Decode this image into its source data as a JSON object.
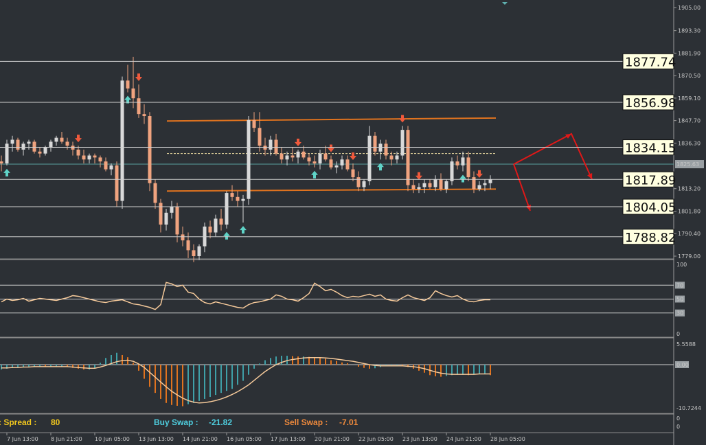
{
  "colors": {
    "background": "#2c3035",
    "grid": "#cfcfcf",
    "bull_candle": "#d9d9d9",
    "bear_candle": "#f0a37f",
    "channel": "#e0731f",
    "up_arrow": "#5fd3c7",
    "down_arrow": "#f05a3c",
    "projection": "#e01818",
    "rsi_line": "#f5c99a",
    "macd_pos": "#3fa0a8",
    "macd_neg": "#e0731f",
    "macd_signal": "#f5c99a",
    "spread_color": "#f2c81e",
    "buy_swap_color": "#4fcfe0",
    "sell_swap_color": "#f08a3c"
  },
  "price_axis": {
    "ticks": [
      "1905.00",
      "1893.30",
      "1881.90",
      "1870.50",
      "1859.10",
      "1847.70",
      "1836.30",
      "1825.63",
      "1813.20",
      "1801.80",
      "1790.40",
      "1779.00"
    ],
    "current_price": "1825.63"
  },
  "levels": [
    "1877.74",
    "1856.98",
    "1834.15",
    "1817.89",
    "1804.05",
    "1788.82"
  ],
  "rsi_axis": {
    "ticks": [
      "100",
      "70",
      "50",
      "30",
      "0"
    ]
  },
  "macd_axis": {
    "ticks": [
      "5.5588",
      "0.00",
      "-10.7244"
    ]
  },
  "info_axis": {
    "ticks": [
      "0",
      "0"
    ]
  },
  "time_axis": {
    "labels": [
      "7 Jun 13:00",
      "8 Jun 21:00",
      "10 Jun 05:00",
      "13 Jun 13:00",
      "14 Jun 21:00",
      "16 Jun 05:00",
      "17 Jun 13:00",
      "20 Jun 21:00",
      "22 Jun 05:00",
      "23 Jun 13:00",
      "24 Jun 21:00",
      "28 Jun 05:00"
    ]
  },
  "info_bar": {
    "spread_label": ": Spread :",
    "spread_value": "80",
    "buy_swap_label": "Buy Swap :",
    "buy_swap_value": "-21.82",
    "sell_swap_label": "Sell Swap :",
    "sell_swap_value": "-7.01"
  },
  "chart_data": {
    "type": "candlestick",
    "price_range": [
      1779.0,
      1905.0
    ],
    "candles": [
      [
        1827,
        1830,
        1822,
        1826
      ],
      [
        1826,
        1838,
        1825,
        1836
      ],
      [
        1836,
        1840,
        1832,
        1838
      ],
      [
        1838,
        1839,
        1832,
        1833
      ],
      [
        1833,
        1837,
        1830,
        1836
      ],
      [
        1836,
        1838,
        1833,
        1837
      ],
      [
        1837,
        1838,
        1831,
        1832
      ],
      [
        1832,
        1834,
        1829,
        1831
      ],
      [
        1831,
        1835,
        1830,
        1834
      ],
      [
        1834,
        1838,
        1832,
        1837
      ],
      [
        1837,
        1840,
        1835,
        1839
      ],
      [
        1839,
        1842,
        1836,
        1837
      ],
      [
        1837,
        1839,
        1833,
        1835
      ],
      [
        1835,
        1837,
        1830,
        1833
      ],
      [
        1833,
        1835,
        1828,
        1830
      ],
      [
        1830,
        1833,
        1826,
        1828
      ],
      [
        1828,
        1831,
        1826,
        1830
      ],
      [
        1830,
        1831,
        1826,
        1829
      ],
      [
        1829,
        1830,
        1824,
        1827
      ],
      [
        1827,
        1829,
        1822,
        1823
      ],
      [
        1823,
        1826,
        1820,
        1825
      ],
      [
        1825,
        1827,
        1804,
        1807
      ],
      [
        1807,
        1870,
        1803,
        1868
      ],
      [
        1868,
        1876,
        1862,
        1864
      ],
      [
        1864,
        1880,
        1854,
        1859
      ],
      [
        1859,
        1866,
        1849,
        1851
      ],
      [
        1851,
        1856,
        1846,
        1850
      ],
      [
        1850,
        1852,
        1812,
        1816
      ],
      [
        1816,
        1818,
        1803,
        1806
      ],
      [
        1806,
        1808,
        1791,
        1795
      ],
      [
        1795,
        1803,
        1792,
        1801
      ],
      [
        1801,
        1807,
        1798,
        1804
      ],
      [
        1804,
        1806,
        1786,
        1790
      ],
      [
        1790,
        1794,
        1784,
        1787
      ],
      [
        1787,
        1791,
        1778,
        1782
      ],
      [
        1782,
        1785,
        1776,
        1779
      ],
      [
        1779,
        1785,
        1777,
        1784
      ],
      [
        1784,
        1796,
        1781,
        1794
      ],
      [
        1794,
        1797,
        1788,
        1791
      ],
      [
        1791,
        1800,
        1789,
        1798
      ],
      [
        1798,
        1803,
        1792,
        1795
      ],
      [
        1795,
        1812,
        1793,
        1811
      ],
      [
        1811,
        1815,
        1807,
        1809
      ],
      [
        1809,
        1812,
        1804,
        1807
      ],
      [
        1807,
        1810,
        1796,
        1808
      ],
      [
        1808,
        1850,
        1805,
        1848
      ],
      [
        1848,
        1852,
        1842,
        1844
      ],
      [
        1844,
        1852,
        1832,
        1835
      ],
      [
        1835,
        1839,
        1830,
        1833
      ],
      [
        1833,
        1840,
        1830,
        1838
      ],
      [
        1838,
        1841,
        1830,
        1831
      ],
      [
        1831,
        1834,
        1826,
        1828
      ],
      [
        1828,
        1832,
        1825,
        1830
      ],
      [
        1830,
        1834,
        1827,
        1829
      ],
      [
        1829,
        1833,
        1826,
        1832
      ],
      [
        1832,
        1835,
        1828,
        1829
      ],
      [
        1829,
        1831,
        1825,
        1827
      ],
      [
        1827,
        1830,
        1824,
        1826
      ],
      [
        1826,
        1833,
        1823,
        1831
      ],
      [
        1831,
        1835,
        1827,
        1828
      ],
      [
        1828,
        1830,
        1823,
        1824
      ],
      [
        1824,
        1827,
        1821,
        1825
      ],
      [
        1825,
        1830,
        1823,
        1828
      ],
      [
        1828,
        1830,
        1822,
        1823
      ],
      [
        1823,
        1826,
        1817,
        1819
      ],
      [
        1819,
        1822,
        1812,
        1814
      ],
      [
        1814,
        1818,
        1812,
        1817
      ],
      [
        1817,
        1845,
        1815,
        1840
      ],
      [
        1840,
        1842,
        1830,
        1832
      ],
      [
        1832,
        1838,
        1828,
        1836
      ],
      [
        1836,
        1838,
        1828,
        1830
      ],
      [
        1830,
        1832,
        1825,
        1828
      ],
      [
        1828,
        1832,
        1826,
        1830
      ],
      [
        1830,
        1845,
        1828,
        1843
      ],
      [
        1843,
        1845,
        1812,
        1815
      ],
      [
        1815,
        1818,
        1811,
        1813
      ],
      [
        1813,
        1816,
        1811,
        1814
      ],
      [
        1814,
        1818,
        1811,
        1816
      ],
      [
        1816,
        1818,
        1813,
        1814
      ],
      [
        1814,
        1820,
        1812,
        1818
      ],
      [
        1818,
        1821,
        1812,
        1813
      ],
      [
        1813,
        1818,
        1811,
        1817
      ],
      [
        1817,
        1829,
        1815,
        1827
      ],
      [
        1827,
        1830,
        1823,
        1825
      ],
      [
        1825,
        1832,
        1822,
        1829
      ],
      [
        1829,
        1832,
        1817,
        1819
      ],
      [
        1819,
        1822,
        1811,
        1813
      ],
      [
        1813,
        1817,
        1812,
        1815
      ],
      [
        1815,
        1818,
        1812,
        1816
      ],
      [
        1816,
        1820,
        1813,
        1818
      ]
    ],
    "up_signals": [
      1,
      23,
      41,
      44,
      57,
      69,
      84
    ],
    "down_signals": [
      14,
      25,
      54,
      60,
      64,
      73,
      76,
      87
    ],
    "channel": {
      "upper": [
        1847.5,
        1849.0
      ],
      "lower": [
        1812.0,
        1813.0
      ],
      "mid": 1831.0
    },
    "projection": {
      "up_path": [
        [
          1825.6,
          0
        ],
        [
          1841,
          14
        ],
        [
          1818,
          19
        ]
      ],
      "down_path": [
        [
          1825.6,
          0
        ],
        [
          1802,
          4
        ]
      ]
    },
    "rsi": [
      46,
      50,
      48,
      49,
      51,
      47,
      49,
      51,
      50,
      49,
      48,
      50,
      52,
      55,
      54,
      52,
      50,
      48,
      46,
      45,
      47,
      48,
      49,
      46,
      43,
      42,
      40,
      38,
      35,
      42,
      74,
      72,
      68,
      70,
      60,
      58,
      50,
      45,
      43,
      46,
      44,
      42,
      40,
      38,
      37,
      42,
      45,
      46,
      48,
      50,
      56,
      54,
      50,
      49,
      47,
      52,
      58,
      73,
      68,
      62,
      64,
      60,
      55,
      52,
      54,
      53,
      55,
      57,
      54,
      56,
      50,
      48,
      47,
      52,
      56,
      52,
      50,
      48,
      52,
      62,
      58,
      55,
      53,
      55,
      50,
      47,
      46,
      48,
      49,
      49
    ],
    "macd": [
      -1.2,
      -1.0,
      -0.8,
      -0.7,
      -0.6,
      -0.5,
      -0.5,
      -0.5,
      -0.6,
      -0.6,
      -0.5,
      -0.5,
      -0.6,
      -0.8,
      -1.0,
      -1.2,
      -1.2,
      -1.0,
      0.5,
      1.8,
      2.6,
      3.2,
      2.6,
      2.0,
      0.5,
      -1.5,
      -3.5,
      -5.5,
      -7.0,
      -8.5,
      -9.5,
      -10.0,
      -10.2,
      -10.3,
      -9.8,
      -9.5,
      -9.0,
      -8.5,
      -8.0,
      -7.5,
      -7.0,
      -6.5,
      -6.0,
      -5.0,
      -4.0,
      -2.5,
      -1.0,
      0.3,
      1.2,
      1.8,
      2.2,
      2.4,
      2.4,
      2.3,
      2.2,
      2.2,
      2.1,
      2.0,
      1.8,
      1.6,
      1.2,
      1.0,
      0.6,
      0.4,
      0.0,
      -0.5,
      -0.8,
      -1.0,
      -0.9,
      -0.6,
      -0.4,
      -0.3,
      -0.3,
      -0.4,
      -0.6,
      -1.0,
      -1.5,
      -2.0,
      -2.6,
      -2.9,
      -3.0,
      -2.8,
      -2.6,
      -2.5,
      -2.5,
      -2.6,
      -2.4,
      -2.2,
      -2.2,
      -2.6
    ],
    "macd_signal": [
      -0.8,
      -0.8,
      -0.7,
      -0.7,
      -0.6,
      -0.6,
      -0.5,
      -0.5,
      -0.5,
      -0.5,
      -0.5,
      -0.5,
      -0.5,
      -0.6,
      -0.7,
      -0.8,
      -0.9,
      -0.9,
      -0.6,
      -0.2,
      0.3,
      0.8,
      1.1,
      1.2,
      0.9,
      0.2,
      -0.7,
      -1.9,
      -3.1,
      -4.3,
      -5.5,
      -6.6,
      -7.5,
      -8.3,
      -8.9,
      -9.3,
      -9.5,
      -9.4,
      -9.2,
      -8.9,
      -8.5,
      -8.0,
      -7.4,
      -6.7,
      -5.9,
      -5.0,
      -3.9,
      -2.8,
      -1.7,
      -0.8,
      0.0,
      0.6,
      1.1,
      1.4,
      1.6,
      1.8,
      1.9,
      1.9,
      1.9,
      1.8,
      1.7,
      1.5,
      1.3,
      1.1,
      0.9,
      0.6,
      0.3,
      0.0,
      -0.2,
      -0.3,
      -0.3,
      -0.3,
      -0.3,
      -0.3,
      -0.4,
      -0.5,
      -0.7,
      -1.0,
      -1.4,
      -1.8,
      -2.1,
      -2.3,
      -2.4,
      -2.4,
      -2.4,
      -2.4,
      -2.4,
      -2.3,
      -2.3,
      -2.3
    ]
  }
}
